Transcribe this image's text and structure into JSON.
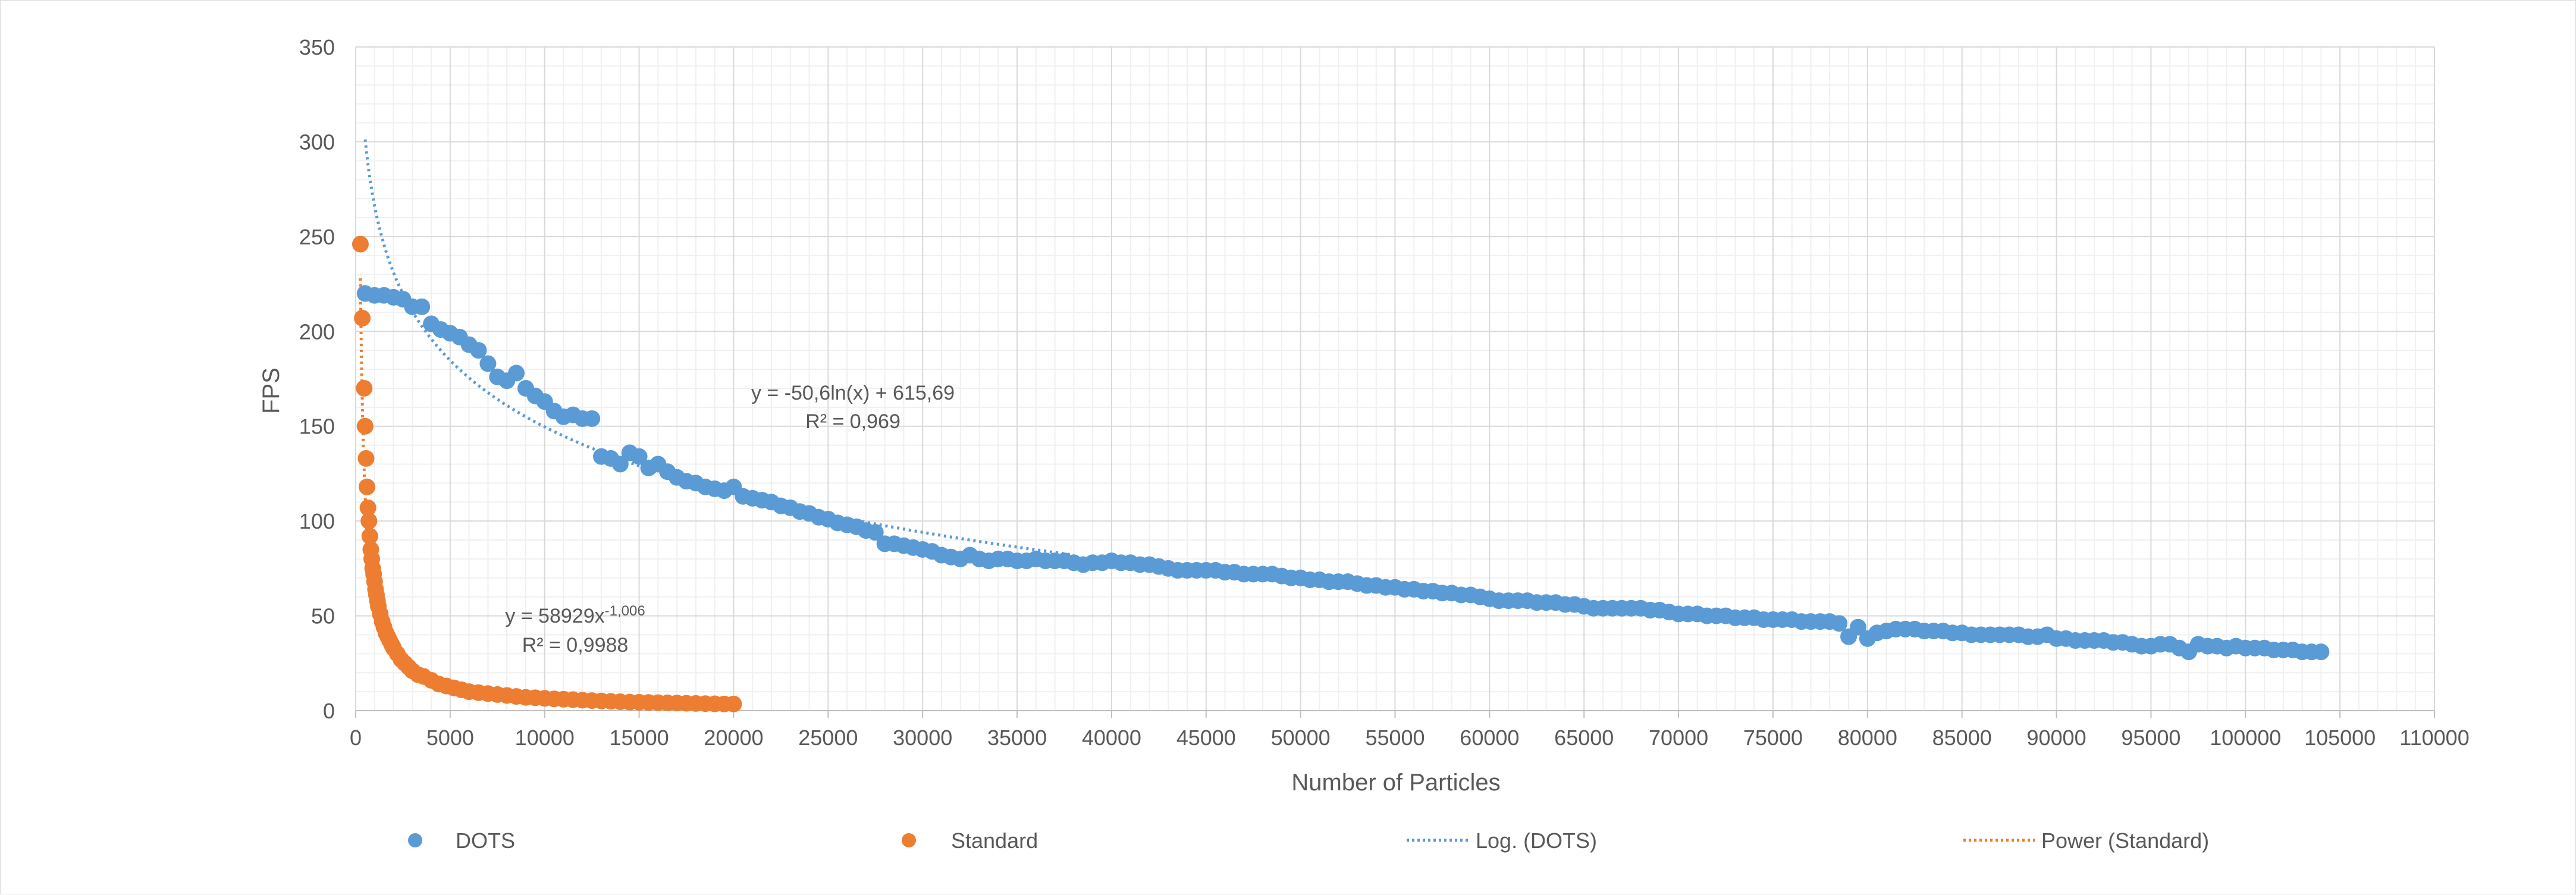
{
  "chart_data": {
    "type": "scatter",
    "xlabel": "Number of Particles",
    "ylabel": "FPS",
    "xlim": [
      0,
      110000
    ],
    "ylim": [
      0,
      350
    ],
    "x_ticks": [
      "0",
      "5000",
      "10000",
      "15000",
      "20000",
      "25000",
      "30000",
      "35000",
      "40000",
      "45000",
      "50000",
      "55000",
      "60000",
      "65000",
      "70000",
      "75000",
      "80000",
      "85000",
      "90000",
      "95000",
      "100000",
      "105000",
      "110000"
    ],
    "y_ticks": [
      "0",
      "50",
      "100",
      "150",
      "200",
      "250",
      "300",
      "350"
    ],
    "grid": true,
    "minor_grid": true,
    "legend_position": "bottom",
    "series": [
      {
        "name": "DOTS",
        "kind": "scatter",
        "color": "#5b9bd5",
        "points": [
          [
            500,
            220
          ],
          [
            1000,
            219
          ],
          [
            1500,
            219
          ],
          [
            2000,
            218
          ],
          [
            2500,
            217
          ],
          [
            3000,
            213
          ],
          [
            3500,
            213
          ],
          [
            4000,
            204
          ],
          [
            4500,
            201
          ],
          [
            5000,
            199
          ],
          [
            5500,
            197
          ],
          [
            6000,
            193
          ],
          [
            6500,
            190
          ],
          [
            7000,
            183
          ],
          [
            7500,
            176
          ],
          [
            8000,
            174
          ],
          [
            8500,
            178
          ],
          [
            9000,
            170
          ],
          [
            9500,
            166
          ],
          [
            10000,
            163
          ],
          [
            10500,
            158
          ],
          [
            11000,
            155
          ],
          [
            11500,
            156
          ],
          [
            12000,
            154
          ],
          [
            12500,
            154
          ],
          [
            13000,
            134
          ],
          [
            13500,
            133
          ],
          [
            14000,
            130
          ],
          [
            14500,
            136
          ],
          [
            15000,
            134
          ],
          [
            15500,
            128
          ],
          [
            16000,
            130
          ],
          [
            16500,
            126
          ],
          [
            17000,
            123
          ],
          [
            17500,
            121
          ],
          [
            18000,
            120
          ],
          [
            18500,
            118
          ],
          [
            19000,
            117
          ],
          [
            19500,
            116
          ],
          [
            20000,
            118
          ],
          [
            20500,
            113
          ],
          [
            21000,
            112
          ],
          [
            21500,
            111
          ],
          [
            22000,
            110
          ],
          [
            22500,
            108
          ],
          [
            23000,
            107
          ],
          [
            23500,
            105
          ],
          [
            24000,
            104
          ],
          [
            24500,
            102
          ],
          [
            25000,
            101
          ],
          [
            25500,
            99
          ],
          [
            26000,
            98
          ],
          [
            26500,
            97
          ],
          [
            27000,
            95
          ],
          [
            27500,
            94
          ],
          [
            28000,
            88
          ],
          [
            28500,
            88
          ],
          [
            29000,
            87
          ],
          [
            29500,
            86
          ],
          [
            30000,
            85
          ],
          [
            30500,
            84
          ],
          [
            31000,
            82
          ],
          [
            31500,
            81
          ],
          [
            32000,
            80
          ],
          [
            32500,
            82
          ],
          [
            33000,
            80
          ],
          [
            33500,
            79
          ],
          [
            34000,
            80
          ],
          [
            34500,
            80
          ],
          [
            35000,
            79
          ],
          [
            35500,
            79
          ],
          [
            36000,
            80
          ],
          [
            36500,
            79
          ],
          [
            37000,
            79
          ],
          [
            37500,
            79
          ],
          [
            38000,
            78
          ],
          [
            38500,
            77
          ],
          [
            39000,
            78
          ],
          [
            39500,
            78
          ],
          [
            40000,
            79
          ],
          [
            40500,
            78
          ],
          [
            41000,
            78
          ],
          [
            41500,
            77
          ],
          [
            42000,
            77
          ],
          [
            42500,
            76
          ],
          [
            43000,
            75
          ],
          [
            43500,
            74
          ],
          [
            44000,
            74
          ],
          [
            44500,
            74
          ],
          [
            45000,
            74
          ],
          [
            45500,
            74
          ],
          [
            46000,
            73
          ],
          [
            46500,
            73
          ],
          [
            47000,
            72
          ],
          [
            47500,
            72
          ],
          [
            48000,
            72
          ],
          [
            48500,
            72
          ],
          [
            49000,
            71
          ],
          [
            49500,
            70
          ],
          [
            50000,
            70
          ],
          [
            50500,
            69
          ],
          [
            51000,
            69
          ],
          [
            51500,
            68
          ],
          [
            52000,
            68
          ],
          [
            52500,
            68
          ],
          [
            53000,
            67
          ],
          [
            53500,
            66
          ],
          [
            54000,
            66
          ],
          [
            54500,
            65
          ],
          [
            55000,
            65
          ],
          [
            55500,
            64
          ],
          [
            56000,
            64
          ],
          [
            56500,
            63
          ],
          [
            57000,
            63
          ],
          [
            57500,
            62
          ],
          [
            58000,
            62
          ],
          [
            58500,
            61
          ],
          [
            59000,
            61
          ],
          [
            59500,
            60
          ],
          [
            60000,
            59
          ],
          [
            60500,
            58
          ],
          [
            61000,
            58
          ],
          [
            61500,
            58
          ],
          [
            62000,
            58
          ],
          [
            62500,
            57
          ],
          [
            63000,
            57
          ],
          [
            63500,
            57
          ],
          [
            64000,
            56
          ],
          [
            64500,
            56
          ],
          [
            65000,
            55
          ],
          [
            65500,
            54
          ],
          [
            66000,
            54
          ],
          [
            66500,
            54
          ],
          [
            67000,
            54
          ],
          [
            67500,
            54
          ],
          [
            68000,
            54
          ],
          [
            68500,
            53
          ],
          [
            69000,
            53
          ],
          [
            69500,
            52
          ],
          [
            70000,
            51
          ],
          [
            70500,
            51
          ],
          [
            71000,
            51
          ],
          [
            71500,
            50
          ],
          [
            72000,
            50
          ],
          [
            72500,
            50
          ],
          [
            73000,
            49
          ],
          [
            73500,
            49
          ],
          [
            74000,
            49
          ],
          [
            74500,
            48
          ],
          [
            75000,
            48
          ],
          [
            75500,
            48
          ],
          [
            76000,
            48
          ],
          [
            76500,
            47
          ],
          [
            77000,
            47
          ],
          [
            77500,
            47
          ],
          [
            78000,
            47
          ],
          [
            78500,
            46
          ],
          [
            79000,
            39
          ],
          [
            79500,
            44
          ],
          [
            80000,
            38
          ],
          [
            80500,
            41
          ],
          [
            81000,
            42
          ],
          [
            81500,
            43
          ],
          [
            82000,
            43
          ],
          [
            82500,
            43
          ],
          [
            83000,
            42
          ],
          [
            83500,
            42
          ],
          [
            84000,
            42
          ],
          [
            84500,
            41
          ],
          [
            85000,
            41
          ],
          [
            85500,
            40
          ],
          [
            86000,
            40
          ],
          [
            86500,
            40
          ],
          [
            87000,
            40
          ],
          [
            87500,
            40
          ],
          [
            88000,
            40
          ],
          [
            88500,
            39
          ],
          [
            89000,
            39
          ],
          [
            89500,
            40
          ],
          [
            90000,
            38
          ],
          [
            90500,
            38
          ],
          [
            91000,
            37
          ],
          [
            91500,
            37
          ],
          [
            92000,
            37
          ],
          [
            92500,
            37
          ],
          [
            93000,
            36
          ],
          [
            93500,
            36
          ],
          [
            94000,
            35
          ],
          [
            94500,
            34
          ],
          [
            95000,
            34
          ],
          [
            95500,
            35
          ],
          [
            96000,
            35
          ],
          [
            96500,
            33
          ],
          [
            97000,
            31
          ],
          [
            97500,
            35
          ],
          [
            98000,
            34
          ],
          [
            98500,
            34
          ],
          [
            99000,
            33
          ],
          [
            99500,
            34
          ],
          [
            100000,
            33
          ],
          [
            100500,
            33
          ],
          [
            101000,
            33
          ],
          [
            101500,
            32
          ],
          [
            102000,
            32
          ],
          [
            102500,
            32
          ],
          [
            103000,
            31
          ],
          [
            103500,
            31
          ],
          [
            104000,
            31
          ]
        ]
      },
      {
        "name": "Standard",
        "kind": "scatter",
        "color": "#ed7d31",
        "points": [
          [
            250,
            246
          ],
          [
            350,
            207
          ],
          [
            450,
            170
          ],
          [
            500,
            150
          ],
          [
            550,
            133
          ],
          [
            600,
            118
          ],
          [
            650,
            107
          ],
          [
            700,
            100
          ],
          [
            750,
            92
          ],
          [
            800,
            85
          ],
          [
            850,
            80
          ],
          [
            900,
            75
          ],
          [
            950,
            72
          ],
          [
            1000,
            68
          ],
          [
            1050,
            64
          ],
          [
            1100,
            61
          ],
          [
            1150,
            58
          ],
          [
            1200,
            55
          ],
          [
            1300,
            51
          ],
          [
            1400,
            47
          ],
          [
            1500,
            44
          ],
          [
            1600,
            41
          ],
          [
            1700,
            39
          ],
          [
            1800,
            37
          ],
          [
            1900,
            35
          ],
          [
            2000,
            33
          ],
          [
            2200,
            30
          ],
          [
            2400,
            27
          ],
          [
            2600,
            25
          ],
          [
            2800,
            23
          ],
          [
            3000,
            21
          ],
          [
            3300,
            19
          ],
          [
            3600,
            18
          ],
          [
            4000,
            16
          ],
          [
            4400,
            14
          ],
          [
            4800,
            13
          ],
          [
            5200,
            12
          ],
          [
            5600,
            11
          ],
          [
            6000,
            10
          ],
          [
            6500,
            9.5
          ],
          [
            7000,
            9
          ],
          [
            7500,
            8.5
          ],
          [
            8000,
            8
          ],
          [
            8500,
            7.5
          ],
          [
            9000,
            7
          ],
          [
            9500,
            6.8
          ],
          [
            10000,
            6.5
          ],
          [
            10500,
            6.2
          ],
          [
            11000,
            6
          ],
          [
            11500,
            5.8
          ],
          [
            12000,
            5.5
          ],
          [
            12500,
            5.3
          ],
          [
            13000,
            5.1
          ],
          [
            13500,
            4.9
          ],
          [
            14000,
            4.7
          ],
          [
            14500,
            4.5
          ],
          [
            15000,
            4.4
          ],
          [
            15500,
            4.3
          ],
          [
            16000,
            4.2
          ],
          [
            16500,
            4.1
          ],
          [
            17000,
            4
          ],
          [
            17500,
            3.9
          ],
          [
            18000,
            3.8
          ],
          [
            18500,
            3.7
          ],
          [
            19000,
            3.6
          ],
          [
            19500,
            3.5
          ],
          [
            20000,
            3.5
          ]
        ]
      },
      {
        "name": "Log. (DOTS)",
        "kind": "trendline",
        "color": "#5b9bd5",
        "equation": "y = -50,6ln(x) + 615,69",
        "r_squared": "R² = 0,969",
        "model": {
          "form": "log",
          "a": -50.6,
          "b": 615.69
        },
        "x_range": [
          500,
          38000
        ]
      },
      {
        "name": "Power (Standard)",
        "kind": "trendline",
        "color": "#ed7d31",
        "equation_base": "y = 58929x",
        "equation_exp": "-1,006",
        "r_squared": "R² = 0,9988",
        "model": {
          "form": "power",
          "a": 58929,
          "b": -1.006
        },
        "x_range": [
          250,
          1500
        ]
      }
    ]
  }
}
